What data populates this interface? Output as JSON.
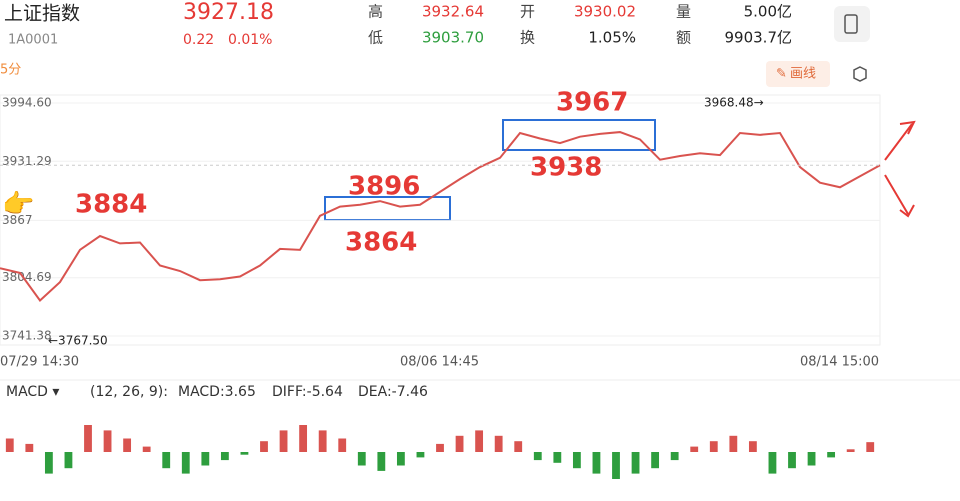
{
  "header": {
    "name": "上证指数",
    "code": "1A0001",
    "price": "3927.18",
    "change": "0.22",
    "change_pct": "0.01%",
    "stats": [
      {
        "label": "高",
        "value": "3932.64"
      },
      {
        "label": "低",
        "value": "3903.70"
      },
      {
        "label": "开",
        "value": "3930.02"
      },
      {
        "label": "换",
        "value": "1.05%"
      },
      {
        "label": "量",
        "value": "5.00亿"
      },
      {
        "label": "额",
        "value": "9903.7亿"
      }
    ]
  },
  "toolbar": {
    "period": "5分",
    "draw": "画线"
  },
  "chart_data": {
    "type": "line",
    "color": "#d9534f",
    "ylim": [
      3741.38,
      3994.6
    ],
    "yticks": [
      {
        "value": 3994.6,
        "label": "3994.60"
      },
      3931.29,
      3867,
      3804.69,
      3741.38
    ],
    "x_labels": [
      "07/29 14:30",
      "08/06 14:45",
      "08/14 15:00"
    ],
    "values": [
      3815,
      3810,
      3780,
      3800,
      3835,
      3850,
      3842,
      3843,
      3818,
      3812,
      3802,
      3803,
      3806,
      3818,
      3836,
      3835,
      3872,
      3882,
      3884,
      3888,
      3882,
      3884,
      3898,
      3912,
      3925,
      3935,
      3962,
      3956,
      3951,
      3958,
      3961,
      3963,
      3955,
      3933,
      3937,
      3940,
      3938,
      3962,
      3960,
      3962,
      3925,
      3908,
      3903,
      3915,
      3927
    ],
    "annotations": [
      "3884",
      "3896",
      "3864",
      "3967",
      "3938",
      "3968.48→",
      "←3767.50"
    ]
  },
  "macd": {
    "name": "MACD ▾",
    "params": "(12, 26, 9):",
    "macd": "MACD:3.65",
    "diff": "DIFF:-5.64",
    "dea": "DEA:-7.46",
    "values": [
      5,
      3,
      -8,
      -6,
      10,
      8,
      5,
      2,
      -6,
      -8,
      -5,
      -3,
      -1,
      4,
      8,
      10,
      8,
      5,
      -5,
      -7,
      -5,
      -2,
      3,
      6,
      8,
      6,
      4,
      -3,
      -4,
      -6,
      -8,
      -10,
      -8,
      -6,
      -3,
      2,
      4,
      6,
      4,
      -8,
      -6,
      -5,
      -2,
      1,
      3.65
    ]
  }
}
